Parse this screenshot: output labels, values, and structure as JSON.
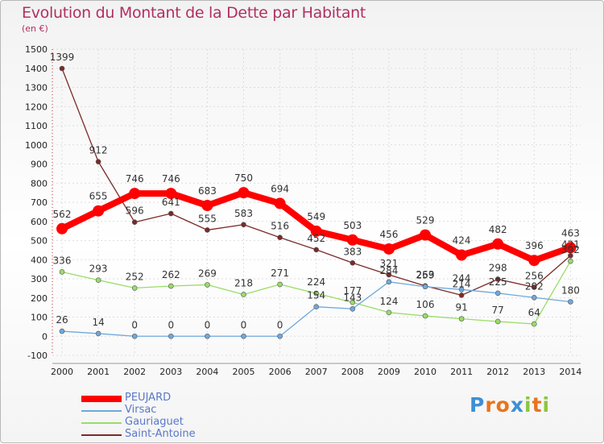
{
  "chart_data": {
    "type": "line",
    "title": "Evolution du Montant de la Dette par Habitant",
    "subtitle": "(en €)",
    "xlabel": "",
    "ylabel": "",
    "categories": [
      "2000",
      "2001",
      "2002",
      "2003",
      "2004",
      "2005",
      "2006",
      "2007",
      "2008",
      "2009",
      "2010",
      "2011",
      "2012",
      "2013",
      "2014"
    ],
    "ylim": [
      -100,
      1500
    ],
    "yticks": [
      -100,
      0,
      100,
      200,
      300,
      400,
      500,
      600,
      700,
      800,
      900,
      1000,
      1100,
      1200,
      1300,
      1400,
      1500
    ],
    "grid": true,
    "legend_position": "bottom-left",
    "series": [
      {
        "name": "PEUJARD",
        "color": "#ff0000",
        "values": [
          562,
          655,
          746,
          746,
          683,
          750,
          694,
          549,
          503,
          456,
          529,
          424,
          482,
          396,
          463
        ]
      },
      {
        "name": "Virsac",
        "color": "#6fa8dc",
        "values": [
          26,
          14,
          0,
          0,
          0,
          0,
          0,
          154,
          143,
          284,
          259,
          244,
          225,
          202,
          180
        ]
      },
      {
        "name": "Gauriaguet",
        "color": "#99dd66",
        "values": [
          336,
          293,
          252,
          262,
          269,
          218,
          271,
          224,
          177,
          124,
          106,
          91,
          77,
          64,
          392
        ]
      },
      {
        "name": "Saint-Antoine",
        "color": "#7b2a2a",
        "values": [
          1399,
          912,
          596,
          641,
          555,
          583,
          516,
          452,
          383,
          321,
          263,
          214,
          298,
          256,
          421
        ]
      }
    ]
  },
  "logo": {
    "text": "Proxiti",
    "letters": [
      "P",
      "r",
      "o",
      "x",
      "i",
      "t",
      "i"
    ],
    "colors": [
      "#3d8fd6",
      "#e8741e",
      "#e8741e",
      "#3d8fd6",
      "#8cc63f",
      "#e8741e",
      "#8cc63f"
    ]
  }
}
